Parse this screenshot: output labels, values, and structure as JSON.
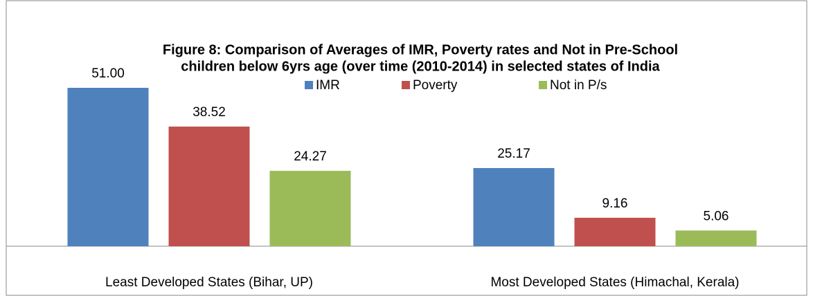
{
  "chart_data": {
    "type": "bar",
    "title": [
      "Figure 8:  Comparison of Averages of IMR, Poverty rates and Not in Pre-School",
      "children below 6yrs age (over time (2010-2014) in selected states of India"
    ],
    "categories": [
      "Least Developed States (Bihar, UP)",
      "Most Developed States (Himachal, Kerala)"
    ],
    "series": [
      {
        "name": "IMR",
        "color": "#4f81bd",
        "values": [
          51,
          25.17
        ],
        "value_labels": [
          "51.00",
          "25.17"
        ]
      },
      {
        "name": "Poverty",
        "color": "#c0504d",
        "values": [
          38.52,
          9.16
        ],
        "value_labels": [
          "38.52",
          "9.16"
        ]
      },
      {
        "name": "Not in P/s",
        "color": "#9bbb59",
        "values": [
          24.27,
          5.06
        ],
        "value_labels": [
          "24.27",
          "5.06"
        ]
      }
    ]
  }
}
